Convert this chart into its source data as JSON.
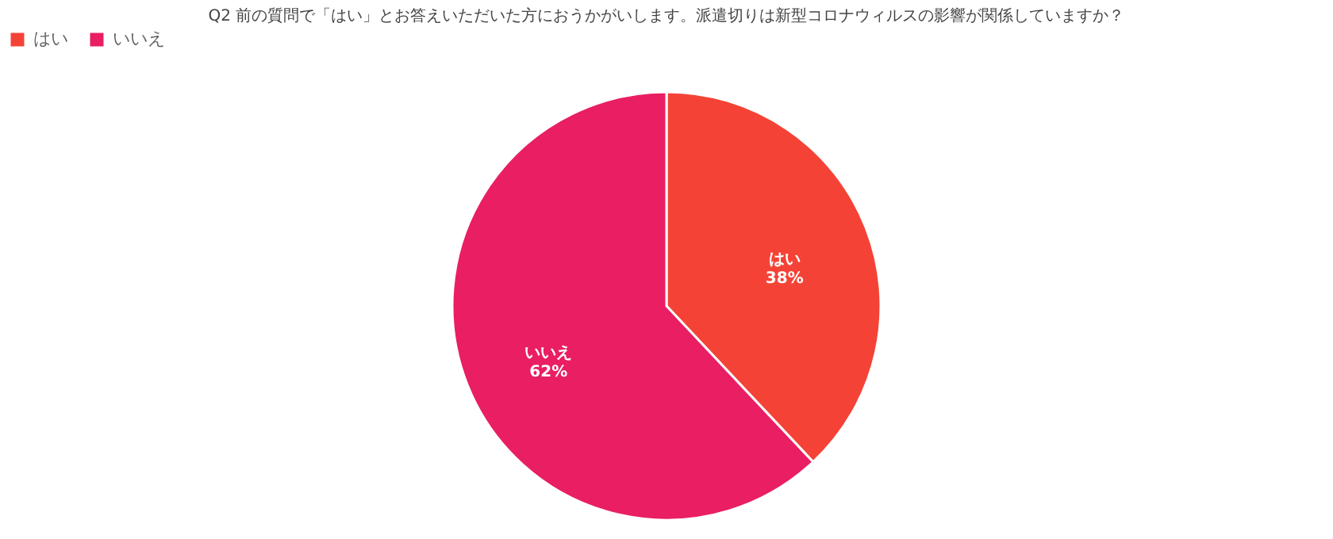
{
  "chart_data": {
    "type": "pie",
    "title": "Q2 前の質問で「はい」とお答えいただいた方におうかがいします。派遣切りは新型コロナウィルスの影響が関係していますか？",
    "categories": [
      "はい",
      "いいえ"
    ],
    "values": [
      38,
      62
    ],
    "colors": [
      "#f44336",
      "#e91e63"
    ],
    "value_labels": [
      "38%",
      "62%"
    ],
    "legend": "top"
  }
}
